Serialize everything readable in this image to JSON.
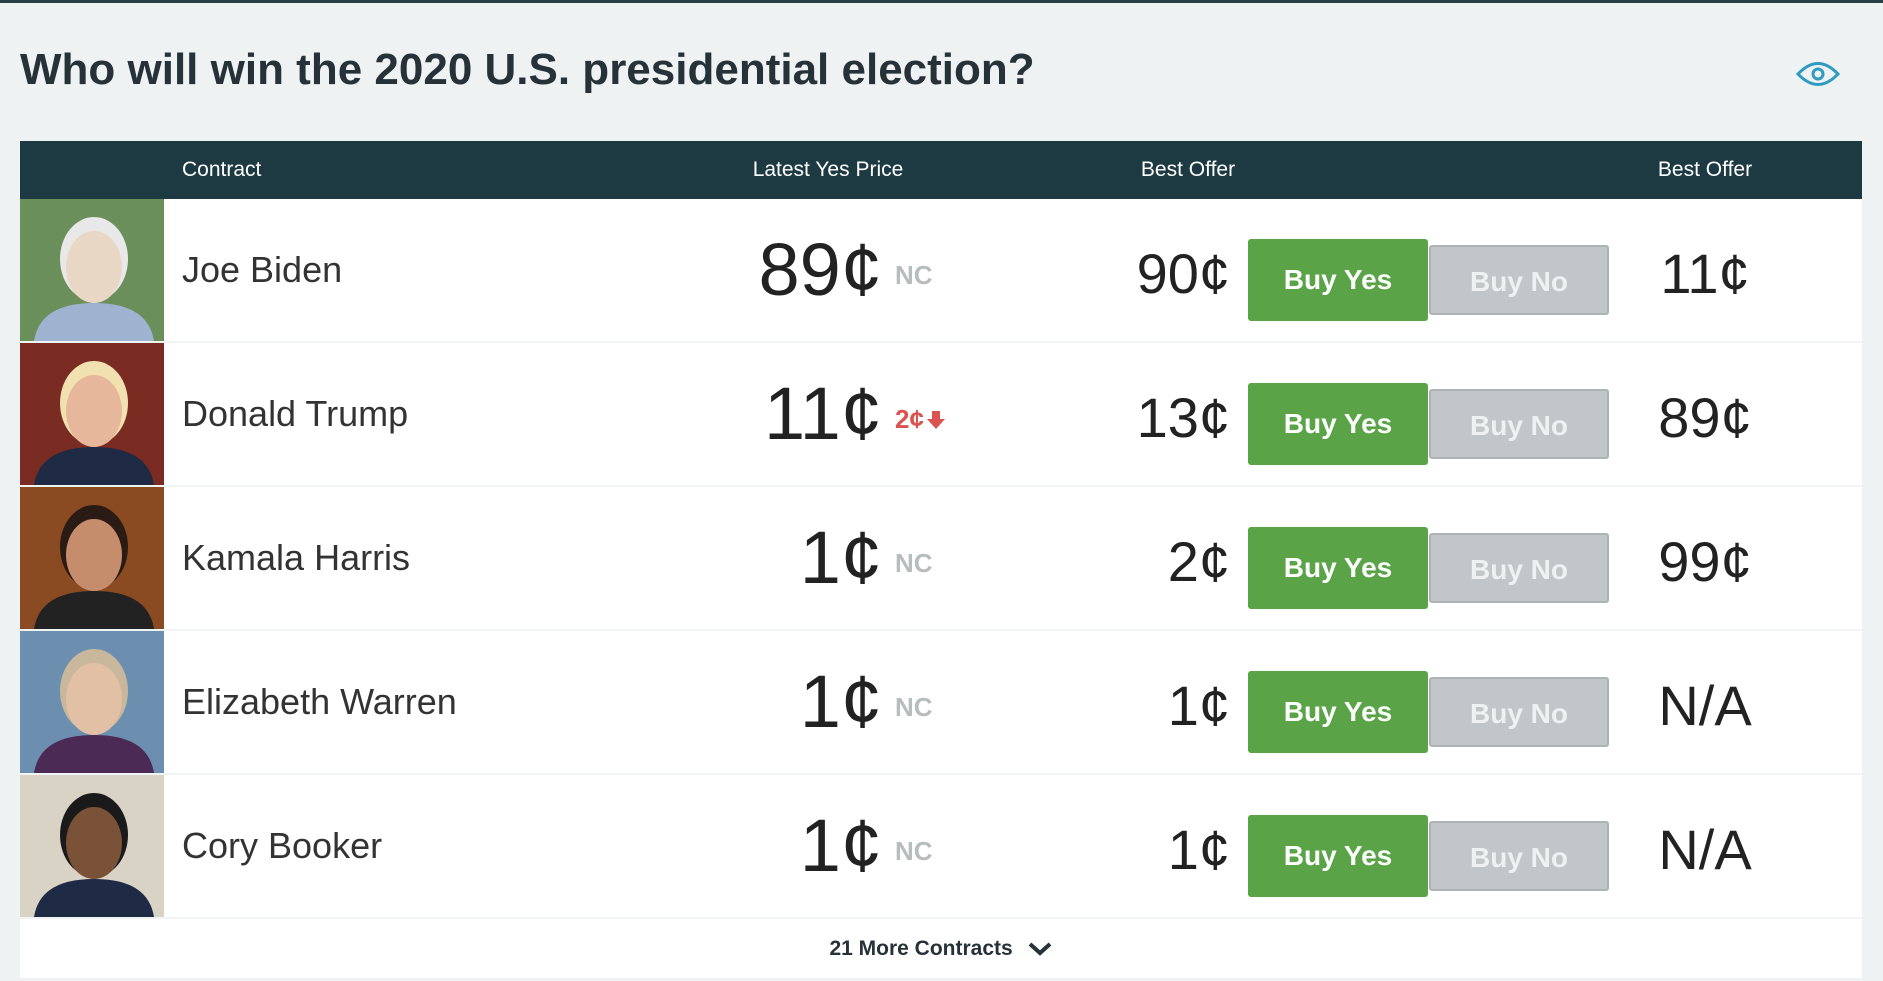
{
  "header": {
    "title": "Who will win the 2020 U.S. presidential election?"
  },
  "table": {
    "columns": [
      "Contract",
      "Latest Yes Price",
      "Best Offer",
      "Best Offer"
    ],
    "buttons": {
      "yes": "Buy Yes",
      "no": "Buy No"
    },
    "rows": [
      {
        "name": "Joe Biden",
        "price": "89¢",
        "change": {
          "text": "NC"
        },
        "yes_offer": "90¢",
        "no_offer": "11¢"
      },
      {
        "name": "Donald Trump",
        "price": "11¢",
        "change": {
          "text": "2¢",
          "direction": "down"
        },
        "yes_offer": "13¢",
        "no_offer": "89¢"
      },
      {
        "name": "Kamala Harris",
        "price": "1¢",
        "change": {
          "text": "NC"
        },
        "yes_offer": "2¢",
        "no_offer": "99¢"
      },
      {
        "name": "Elizabeth Warren",
        "price": "1¢",
        "change": {
          "text": "NC"
        },
        "yes_offer": "1¢",
        "no_offer": "N/A"
      },
      {
        "name": "Cory Booker",
        "price": "1¢",
        "change": {
          "text": "NC"
        },
        "yes_offer": "1¢",
        "no_offer": "N/A"
      }
    ],
    "more": "21 More Contracts"
  }
}
